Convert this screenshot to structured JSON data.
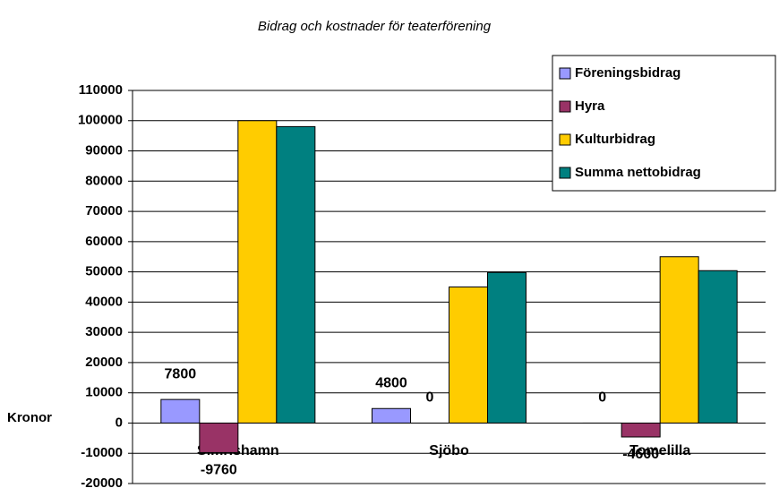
{
  "chart_data": {
    "type": "bar",
    "title": "Bidrag och kostnader för teaterförening",
    "y_label": "Kronor",
    "categories": [
      "Simrishamn",
      "Sjöbo",
      "Tomelilla"
    ],
    "series": [
      {
        "name": "Föreningsbidrag",
        "color": "#9999ff",
        "values": [
          7800,
          4800,
          0
        ],
        "data_labels": true
      },
      {
        "name": "Hyra",
        "color": "#993366",
        "values": [
          -9760,
          0,
          -4600
        ],
        "data_labels": true
      },
      {
        "name": "Kulturbidrag",
        "color": "#ffcc00",
        "values": [
          100000,
          45000,
          55000
        ],
        "data_labels": false
      },
      {
        "name": "Summa nettobidrag",
        "color": "#008080",
        "values": [
          98040,
          49800,
          50400
        ],
        "data_labels": false
      }
    ],
    "ylim": [
      -20000,
      110000
    ],
    "yticks": [
      -20000,
      -10000,
      0,
      10000,
      20000,
      30000,
      40000,
      50000,
      60000,
      70000,
      80000,
      90000,
      100000,
      110000
    ],
    "grid": true,
    "legend": "top-right"
  }
}
